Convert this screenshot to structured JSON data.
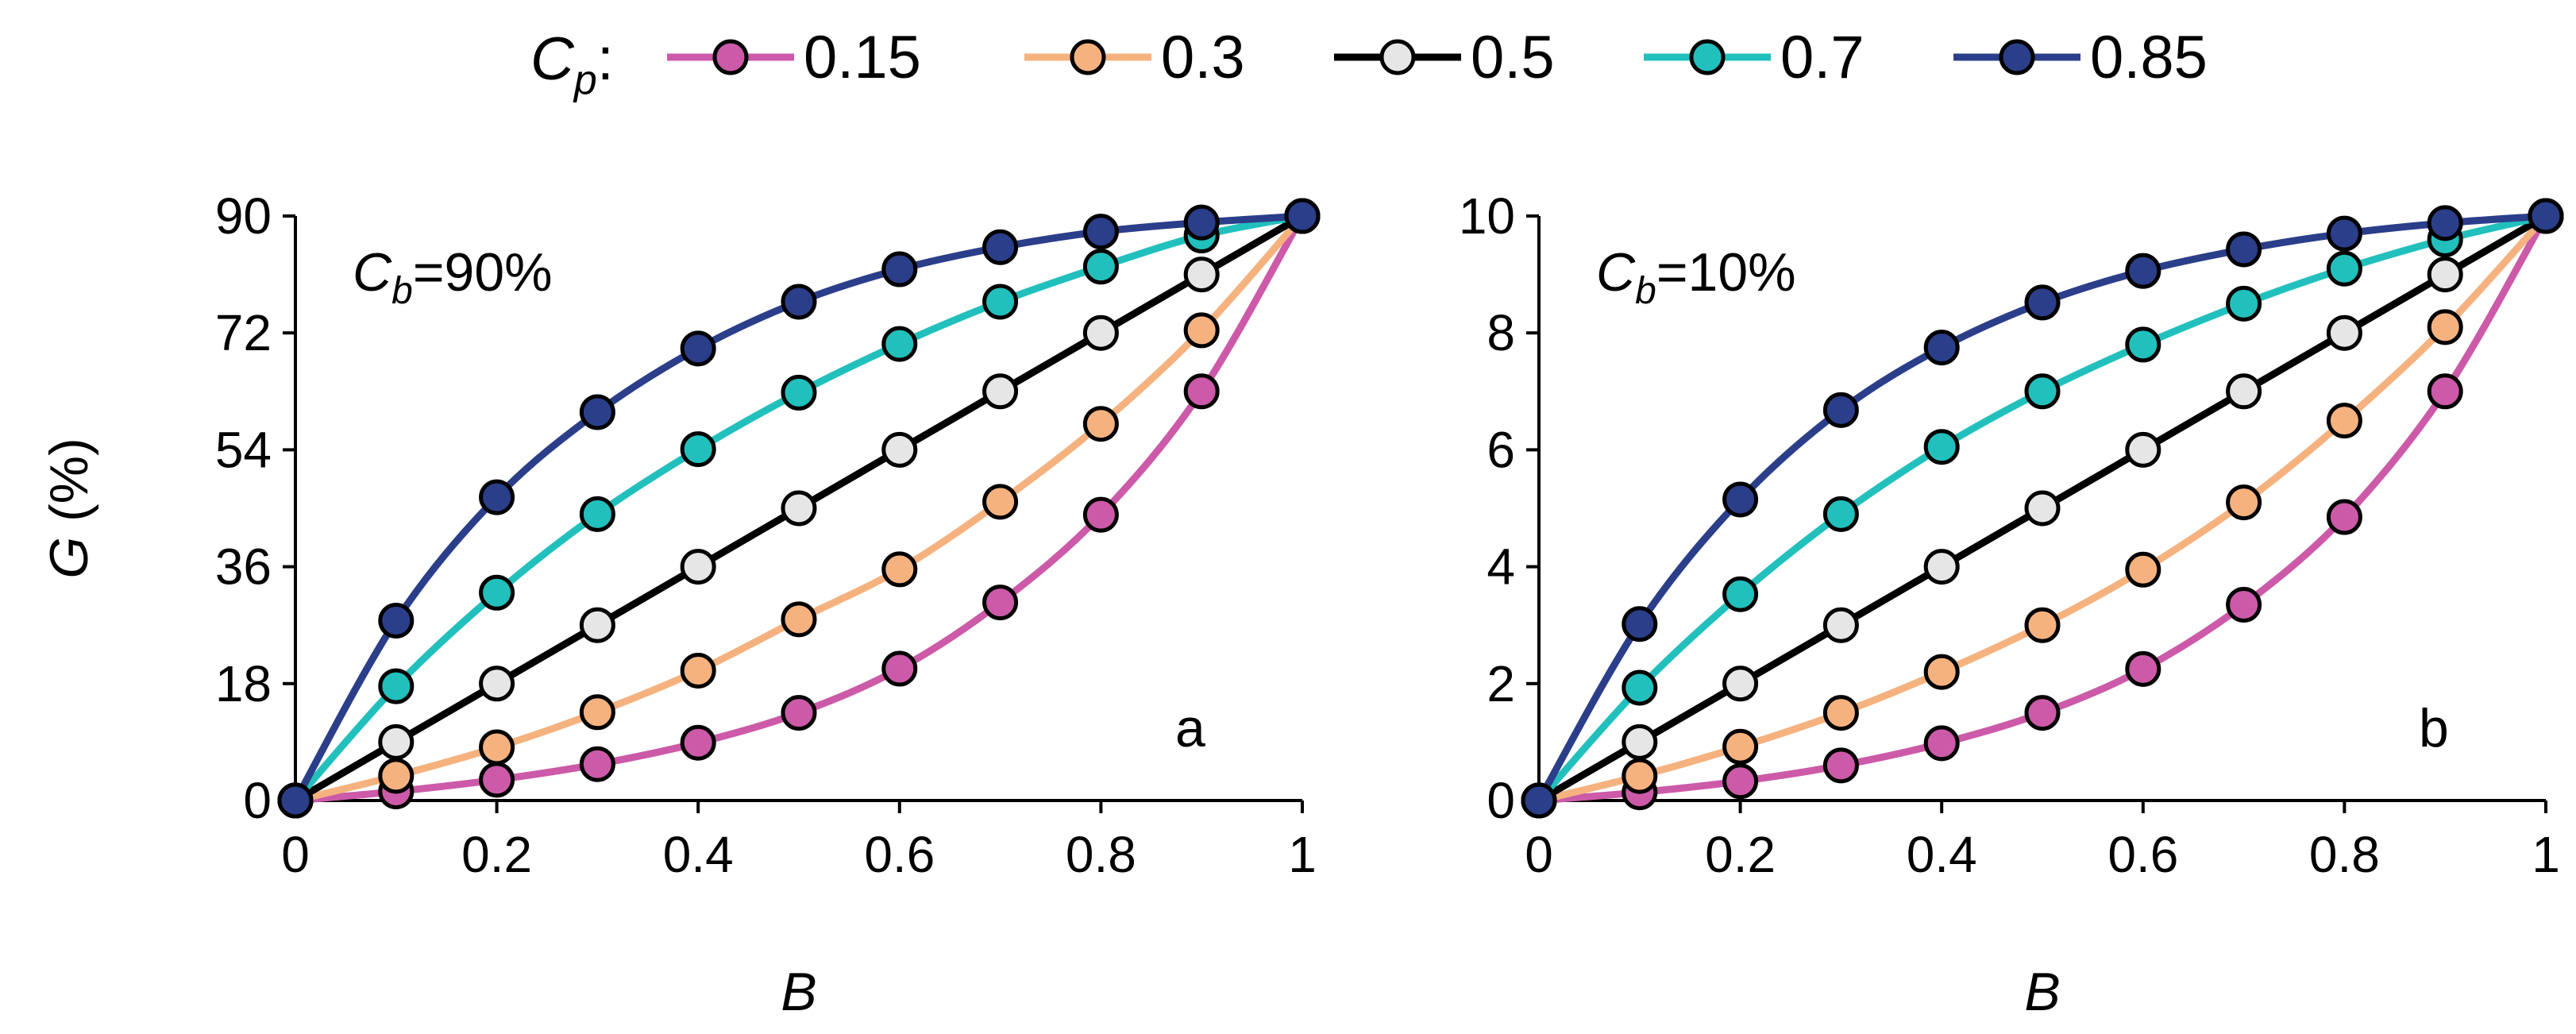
{
  "legend": {
    "title_main": "C",
    "title_sub": "p",
    "title_suffix": ":",
    "entries": [
      "0.15",
      "0.3",
      "0.5",
      "0.7",
      "0.85"
    ]
  },
  "colors": {
    "0.15": "#cc5aa8",
    "0.3": "#f5b27f",
    "0.5": "#000000",
    "0.7": "#22c0bd",
    "0.85": "#2b3e8a",
    "marker_fill_0.15": "#cc5aa8",
    "marker_fill_0.3": "#f5b27f",
    "marker_fill_0.5": "#e6e6e6",
    "marker_fill_0.7": "#22c0bd",
    "marker_fill_0.85": "#2b3e8a"
  },
  "chart_data": [
    {
      "type": "line",
      "panel_label": "a",
      "annotation": {
        "main": "C",
        "sub": "b",
        "rest": "=90%"
      },
      "xlabel": "B",
      "ylabel": "G (%)",
      "ylabel_parts": {
        "italic": "G",
        "rest": " (%)"
      },
      "xlim": [
        0,
        1
      ],
      "ylim": [
        0,
        90
      ],
      "xticks": [
        "0",
        "0.2",
        "0.4",
        "0.6",
        "0.8",
        "1"
      ],
      "yticks": [
        "0",
        "18",
        "36",
        "54",
        "72",
        "90"
      ],
      "x": [
        0,
        0.1,
        0.2,
        0.3,
        0.4,
        0.5,
        0.6,
        0.7,
        0.8,
        0.9,
        1
      ],
      "series": [
        {
          "name": "0.15",
          "values": [
            0,
            1.4,
            3.2,
            5.6,
            8.9,
            13.5,
            20.3,
            30.5,
            44.0,
            63.0,
            90
          ]
        },
        {
          "name": "0.3",
          "values": [
            0,
            3.8,
            8.2,
            13.6,
            20.0,
            27.9,
            35.6,
            46.0,
            58.0,
            72.4,
            90
          ]
        },
        {
          "name": "0.5",
          "values": [
            0,
            9,
            18,
            27,
            36,
            45,
            54,
            63,
            72,
            81,
            90
          ]
        },
        {
          "name": "0.7",
          "values": [
            0,
            17.6,
            32.0,
            44.1,
            54.1,
            62.8,
            70.3,
            76.8,
            82.2,
            87.0,
            90
          ]
        },
        {
          "name": "0.85",
          "values": [
            0,
            27.7,
            46.7,
            59.8,
            69.6,
            76.8,
            81.8,
            85.2,
            87.6,
            89.0,
            90
          ]
        }
      ]
    },
    {
      "type": "line",
      "panel_label": "b",
      "annotation": {
        "main": "C",
        "sub": "b",
        "rest": "=10%"
      },
      "xlabel": "B",
      "ylabel": "",
      "xlim": [
        0,
        1
      ],
      "ylim": [
        0,
        10
      ],
      "xticks": [
        "0",
        "0.2",
        "0.4",
        "0.6",
        "0.8",
        "1"
      ],
      "yticks": [
        "0",
        "2",
        "4",
        "6",
        "8",
        "10"
      ],
      "x": [
        0,
        0.1,
        0.2,
        0.3,
        0.4,
        0.5,
        0.6,
        0.7,
        0.8,
        0.9,
        1
      ],
      "series": [
        {
          "name": "0.15",
          "values": [
            0,
            0.14,
            0.33,
            0.6,
            0.98,
            1.5,
            2.25,
            3.35,
            4.85,
            7.0,
            10
          ]
        },
        {
          "name": "0.3",
          "values": [
            0,
            0.42,
            0.92,
            1.5,
            2.2,
            3.0,
            3.95,
            5.1,
            6.5,
            8.1,
            10
          ]
        },
        {
          "name": "0.5",
          "values": [
            0,
            1,
            2,
            3,
            4,
            5,
            6,
            7,
            8,
            9,
            10
          ]
        },
        {
          "name": "0.7",
          "values": [
            0,
            1.93,
            3.53,
            4.9,
            6.05,
            7.0,
            7.8,
            8.5,
            9.1,
            9.6,
            10
          ]
        },
        {
          "name": "0.85",
          "values": [
            0,
            3.02,
            5.15,
            6.68,
            7.75,
            8.52,
            9.06,
            9.43,
            9.7,
            9.88,
            10
          ]
        }
      ]
    }
  ]
}
